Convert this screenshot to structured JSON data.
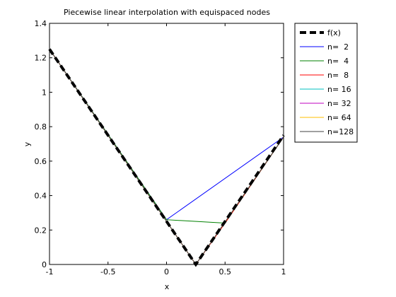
{
  "chart_data": {
    "type": "line",
    "title": "Piecewise linear interpolation with equispaced nodes",
    "xlabel": "x",
    "ylabel": "y",
    "xlim": [
      -1,
      1
    ],
    "ylim": [
      0,
      1.4
    ],
    "x_ticks": [
      -1,
      -0.5,
      0,
      0.5,
      1
    ],
    "x_tick_labels": [
      "-1",
      "-0.5",
      "0",
      "0.5",
      "1"
    ],
    "y_ticks": [
      0,
      0.2,
      0.4,
      0.6,
      0.8,
      1,
      1.2,
      1.4
    ],
    "y_tick_labels": [
      "0",
      "0.2",
      "0.4",
      "0.6",
      "0.8",
      "1",
      "1.2",
      "1.4"
    ],
    "grid": false,
    "legend_position": "outside-right",
    "series": [
      {
        "name": "f(x)",
        "color": "#000000",
        "style": "dashed-thick",
        "x": [
          -1,
          0.25,
          1
        ],
        "y": [
          1.25,
          0,
          0.75
        ]
      },
      {
        "name": "n=  2",
        "color": "#0000ff",
        "style": "solid",
        "x": [
          -1,
          0,
          1
        ],
        "y": [
          1.25,
          0.26,
          0.74
        ]
      },
      {
        "name": "n=  4",
        "color": "#008000",
        "style": "solid",
        "x": [
          -1,
          0,
          0.5,
          1
        ],
        "y": [
          1.25,
          0.26,
          0.24,
          0.74
        ]
      },
      {
        "name": "n=  8",
        "color": "#ff0000",
        "style": "solid",
        "x": [
          -1,
          0.25,
          0.5,
          1
        ],
        "y": [
          1.25,
          0,
          0.24,
          0.74
        ]
      },
      {
        "name": "n= 16",
        "color": "#00bfbf",
        "style": "solid",
        "x": [
          -1,
          0.25,
          1
        ],
        "y": [
          1.25,
          0,
          0.74
        ]
      },
      {
        "name": "n= 32",
        "color": "#bf00bf",
        "style": "solid",
        "x": [
          -1,
          0.25,
          1
        ],
        "y": [
          1.25,
          0,
          0.74
        ]
      },
      {
        "name": "n= 64",
        "color": "#ffbf00",
        "style": "solid",
        "x": [
          -1,
          0.25,
          1
        ],
        "y": [
          1.25,
          0,
          0.74
        ]
      },
      {
        "name": "n=128",
        "color": "#404040",
        "style": "solid",
        "x": [
          -1,
          0.25,
          1
        ],
        "y": [
          1.25,
          0,
          0.74
        ]
      }
    ]
  }
}
